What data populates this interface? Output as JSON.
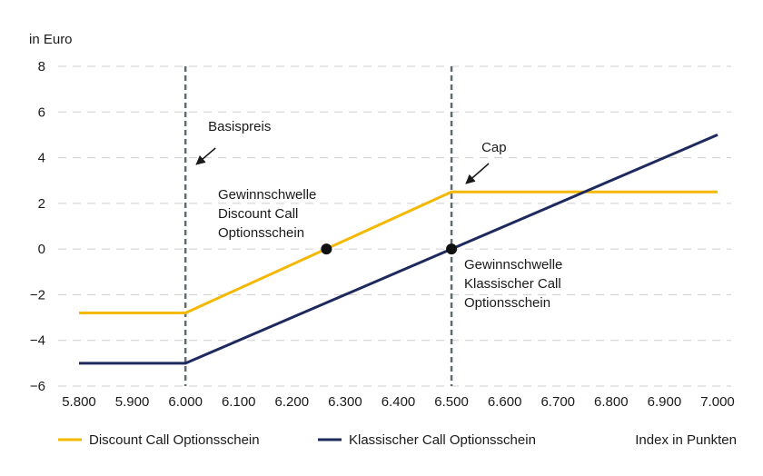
{
  "chart_data": {
    "type": "line",
    "ylabel": "in Euro",
    "xlabel": "Index in Punkten",
    "xlim": [
      5800,
      7000
    ],
    "ylim": [
      -6,
      8
    ],
    "x_ticks": [
      5800,
      5900,
      6000,
      6100,
      6200,
      6300,
      6400,
      6500,
      6600,
      6700,
      6800,
      6900,
      7000
    ],
    "x_tick_labels": [
      "5.800",
      "5.900",
      "6.000",
      "6.100",
      "6.200",
      "6.300",
      "6.400",
      "6.500",
      "6.600",
      "6.700",
      "6.800",
      "6.900",
      "7.000"
    ],
    "y_ticks": [
      -6,
      -4,
      -2,
      0,
      2,
      4,
      6,
      8
    ],
    "y_tick_labels": [
      "−6",
      "−4",
      "−2",
      "0",
      "2",
      "4",
      "6",
      "8"
    ],
    "grid": "horizontal dashed",
    "legend_position": "bottom",
    "series": [
      {
        "name": "Discount Call Optionsschein",
        "color": "#f5b800",
        "x": [
          5800,
          6000,
          6500,
          7000
        ],
        "y": [
          -2.8,
          -2.8,
          2.5,
          2.5
        ]
      },
      {
        "name": "Klassischer Call Optionsschein",
        "color": "#1e2a5e",
        "x": [
          5800,
          6000,
          6500,
          7000
        ],
        "y": [
          -5,
          -5,
          0,
          5
        ]
      }
    ],
    "vlines": [
      {
        "x": 6000,
        "label": "Basispreis"
      },
      {
        "x": 6500,
        "label": "Cap"
      }
    ],
    "points": [
      {
        "x": 6265,
        "y": 0,
        "label": [
          "Gewinnschwelle",
          "Discount Call",
          "Optionsschein"
        ]
      },
      {
        "x": 6500,
        "y": 0,
        "label": [
          "Gewinnschwelle",
          "Klassischer Call",
          "Optionsschein"
        ]
      }
    ]
  }
}
